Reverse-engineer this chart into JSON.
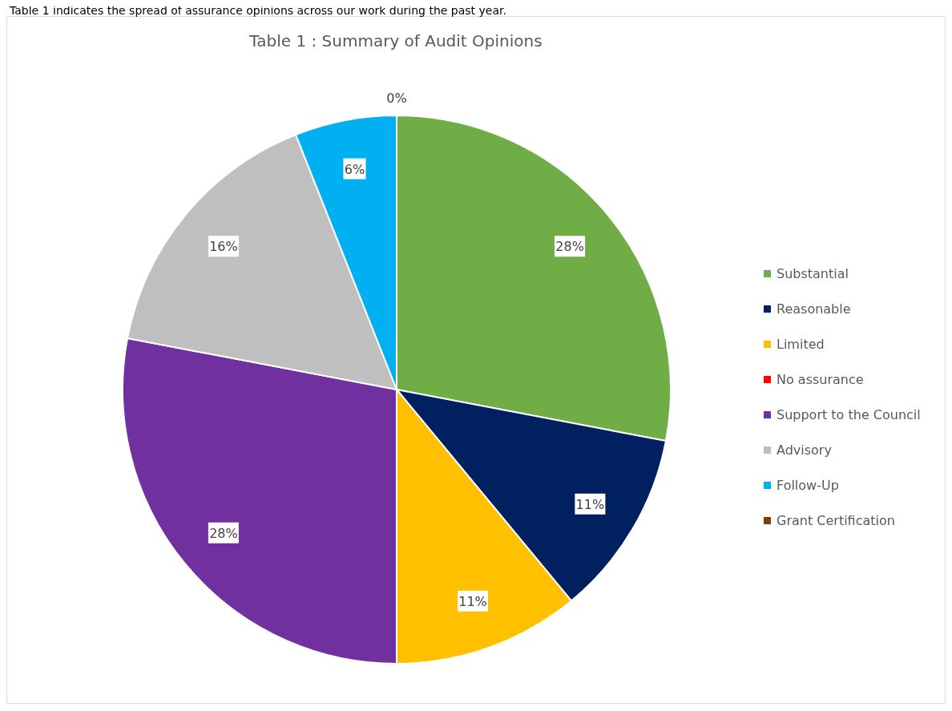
{
  "chart_data": {
    "type": "pie",
    "title": "Table 1 : Summary of Audit Opinions",
    "annotations": [
      "Table 1 indicates the spread of assurance opinions across our work during the past year."
    ],
    "categories": [
      "Substantial",
      "Reasonable",
      "Limited",
      "No assurance",
      "Support to the Council",
      "Advisory",
      "Follow-Up",
      "Grant Certification"
    ],
    "values": [
      28,
      11,
      11,
      0,
      28,
      16,
      6,
      0
    ],
    "colors": [
      "#70ad47",
      "#002060",
      "#ffc000",
      "#ff0000",
      "#7030a0",
      "#bfbfbf",
      "#00b0f0",
      "#843c0c"
    ],
    "value_labels": [
      "28%",
      "11%",
      "11%",
      null,
      "28%",
      "16%",
      "6%",
      "0%"
    ],
    "legend": "right"
  }
}
